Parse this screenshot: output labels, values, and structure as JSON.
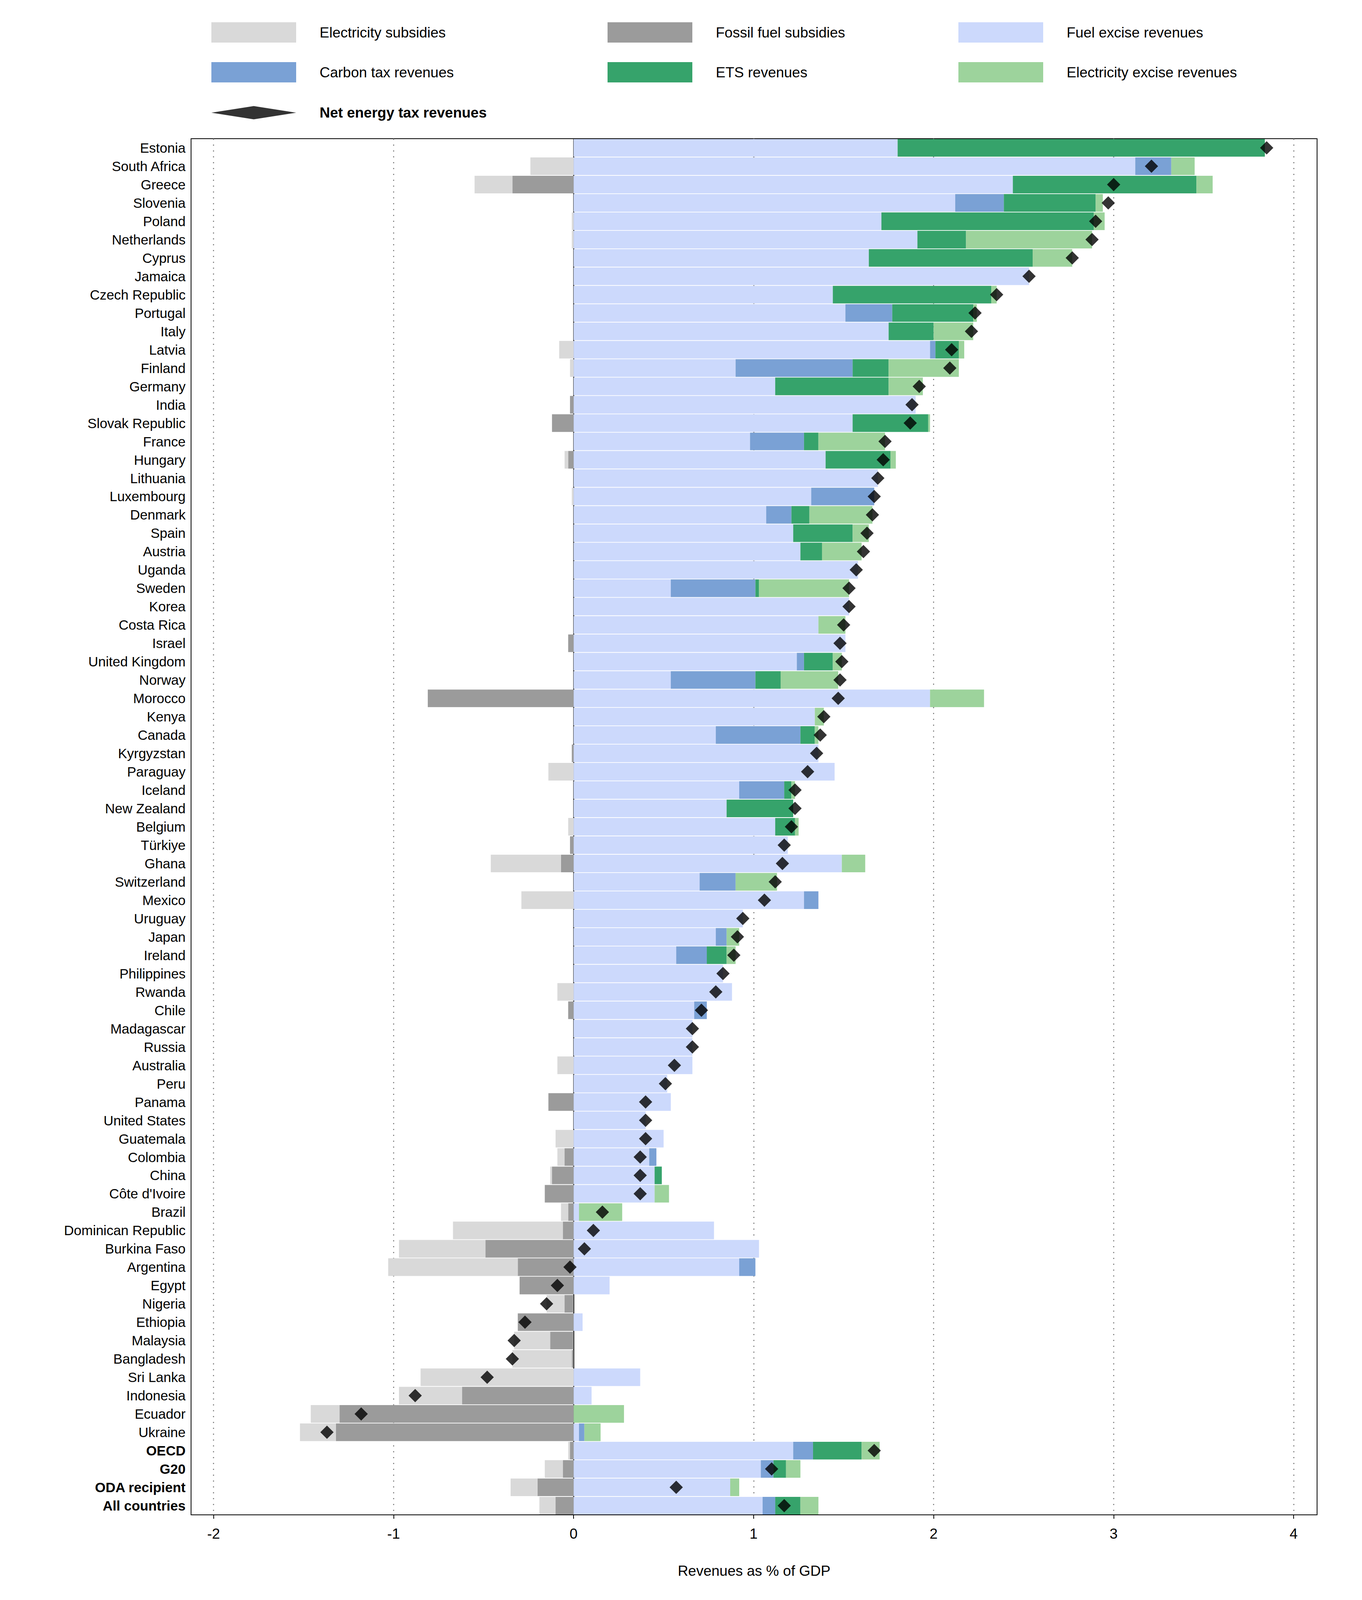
{
  "chart_data": {
    "type": "bar",
    "orientation": "horizontal",
    "stacked": true,
    "grid": true,
    "legend": "top",
    "x_label": "Revenues as % of GDP",
    "xlim": [
      -2.125,
      4.13
    ],
    "xticks": [
      -2,
      -1,
      0,
      1,
      2,
      3,
      4
    ],
    "categories": [
      "Estonia",
      "South Africa",
      "Greece",
      "Slovenia",
      "Poland",
      "Netherlands",
      "Cyprus",
      "Jamaica",
      "Czech Republic",
      "Portugal",
      "Italy",
      "Latvia",
      "Finland",
      "Germany",
      "India",
      "Slovak Republic",
      "France",
      "Hungary",
      "Lithuania",
      "Luxembourg",
      "Denmark",
      "Spain",
      "Austria",
      "Uganda",
      "Sweden",
      "Korea",
      "Costa Rica",
      "Israel",
      "United Kingdom",
      "Norway",
      "Morocco",
      "Kenya",
      "Canada",
      "Kyrgyzstan",
      "Paraguay",
      "Iceland",
      "New Zealand",
      "Belgium",
      "Türkiye",
      "Ghana",
      "Switzerland",
      "Mexico",
      "Uruguay",
      "Japan",
      "Ireland",
      "Philippines",
      "Rwanda",
      "Chile",
      "Madagascar",
      "Russia",
      "Australia",
      "Peru",
      "Panama",
      "United States",
      "Guatemala",
      "Colombia",
      "China",
      "Côte d'Ivoire",
      "Brazil",
      "Dominican Republic",
      "Burkina Faso",
      "Argentina",
      "Egypt",
      "Nigeria",
      "Ethiopia",
      "Malaysia",
      "Bangladesh",
      "Sri Lanka",
      "Indonesia",
      "Ecuador",
      "Ukraine",
      "OECD",
      "G20",
      "ODA recipient",
      "All countries"
    ],
    "series": [
      {
        "name": "Fuel excise revenues",
        "color": "#ccd9fc",
        "values": [
          1.8,
          3.12,
          2.44,
          2.12,
          1.71,
          1.91,
          1.64,
          2.53,
          1.44,
          1.51,
          1.75,
          1.98,
          0.9,
          1.12,
          1.9,
          1.55,
          0.98,
          1.4,
          1.69,
          1.32,
          1.07,
          1.22,
          1.26,
          1.58,
          0.54,
          1.53,
          1.36,
          1.51,
          1.24,
          0.54,
          1.98,
          1.34,
          0.79,
          1.36,
          1.45,
          0.92,
          0.85,
          1.12,
          1.19,
          1.49,
          0.7,
          1.28,
          0.94,
          0.79,
          0.57,
          0.83,
          0.88,
          0.67,
          0.66,
          0.66,
          0.66,
          0.52,
          0.54,
          0.4,
          0.5,
          0.42,
          0.45,
          0.45,
          0.03,
          0.78,
          1.03,
          0.92,
          0.2,
          0,
          0.05,
          0,
          0,
          0.37,
          0.1,
          0,
          0.03,
          1.22,
          1.04,
          0.87,
          1.05
        ]
      },
      {
        "name": "Carbon tax revenues",
        "color": "#7aa1d5",
        "values": [
          0,
          0.2,
          0,
          0.27,
          0,
          0,
          0,
          0,
          0,
          0.26,
          0,
          0.03,
          0.65,
          0,
          0,
          0,
          0.3,
          0,
          0,
          0.35,
          0.14,
          0,
          0,
          0,
          0.47,
          0,
          0,
          0,
          0.04,
          0.47,
          0,
          0,
          0.47,
          0,
          0,
          0.25,
          0,
          0,
          0,
          0,
          0.2,
          0.08,
          0,
          0.06,
          0.17,
          0,
          0,
          0.07,
          0,
          0,
          0,
          0,
          0,
          0,
          0,
          0.04,
          0,
          0,
          0,
          0,
          0,
          0.09,
          0,
          0,
          0,
          0,
          0,
          0,
          0,
          0,
          0.03,
          0.11,
          0.07,
          0,
          0.07
        ]
      },
      {
        "name": "ETS revenues",
        "color": "#36a36b",
        "values": [
          2.04,
          0,
          1.02,
          0.51,
          1.18,
          0.27,
          0.91,
          0,
          0.88,
          0.45,
          0.25,
          0.13,
          0.2,
          0.63,
          0,
          0.42,
          0.08,
          0.36,
          0,
          0,
          0.1,
          0.33,
          0.12,
          0,
          0.02,
          0,
          0,
          0,
          0.16,
          0.14,
          0,
          0,
          0.08,
          0,
          0,
          0.04,
          0.37,
          0.11,
          0,
          0,
          0,
          0,
          0,
          0,
          0.11,
          0,
          0,
          0,
          0,
          0,
          0,
          0,
          0,
          0,
          0,
          0,
          0.04,
          0,
          0,
          0,
          0,
          0,
          0,
          0,
          0,
          0,
          0,
          0,
          0,
          0,
          0,
          0.27,
          0.07,
          0,
          0.14
        ]
      },
      {
        "name": "Electricity excise revenues",
        "color": "#9dd39c",
        "values": [
          0,
          0.13,
          0.09,
          0.04,
          0.06,
          0.7,
          0.22,
          0,
          0.03,
          0.02,
          0.22,
          0.03,
          0.39,
          0.19,
          0,
          0.01,
          0.37,
          0.03,
          0,
          0,
          0.35,
          0.09,
          0.22,
          0,
          0.5,
          0,
          0.15,
          0,
          0.05,
          0.32,
          0.3,
          0.05,
          0.02,
          0,
          0,
          0.02,
          0,
          0.02,
          0,
          0.13,
          0.23,
          0,
          0,
          0.07,
          0.05,
          0,
          0,
          0,
          0,
          0,
          0,
          0,
          0,
          0,
          0,
          0,
          0,
          0.08,
          0.24,
          0,
          0,
          0,
          0,
          0,
          0,
          0,
          0,
          0,
          0,
          0.28,
          0.09,
          0.1,
          0.08,
          0.05,
          0.1
        ]
      },
      {
        "name": "Fossil fuel subsidies",
        "color": "#9b9b9b",
        "values": [
          0,
          0,
          -0.34,
          0,
          0,
          0,
          0,
          0,
          0,
          0,
          0,
          0,
          0,
          0,
          -0.02,
          -0.12,
          0,
          -0.03,
          0,
          0,
          0,
          0,
          0,
          0,
          0,
          0,
          0,
          -0.03,
          0,
          0,
          -0.81,
          0,
          0,
          -0.01,
          0,
          0,
          0,
          0,
          -0.02,
          -0.07,
          0,
          0,
          0,
          0,
          0,
          0,
          0,
          -0.03,
          0,
          0,
          0,
          0,
          -0.14,
          0,
          0,
          -0.05,
          -0.12,
          -0.16,
          -0.03,
          -0.06,
          -0.49,
          -0.31,
          -0.3,
          -0.05,
          -0.31,
          -0.13,
          -0.01,
          0,
          -0.62,
          -1.3,
          -1.32,
          -0.02,
          -0.06,
          -0.2,
          -0.1
        ]
      },
      {
        "name": "Electricity subsidies",
        "color": "#d9d9d9",
        "values": [
          0,
          -0.24,
          -0.21,
          0,
          -0.01,
          -0.01,
          0,
          0,
          0,
          0,
          0,
          -0.08,
          -0.02,
          0,
          0,
          0,
          0,
          -0.02,
          0,
          -0.01,
          0,
          0,
          0,
          0,
          0,
          0,
          0,
          0,
          0,
          0,
          0,
          0,
          0,
          0,
          -0.14,
          0,
          0,
          -0.03,
          0,
          -0.39,
          0,
          -0.29,
          0,
          0,
          0,
          0,
          -0.09,
          0,
          0,
          0,
          -0.09,
          0,
          0,
          0,
          -0.1,
          -0.04,
          -0.01,
          0,
          -0.04,
          -0.61,
          -0.48,
          -0.72,
          0,
          -0.1,
          0,
          -0.2,
          -0.33,
          -0.85,
          -0.35,
          -0.16,
          -0.2,
          -0.01,
          -0.1,
          -0.15,
          -0.09
        ]
      },
      {
        "name": "Net energy tax revenues",
        "type": "scatter",
        "marker": "diamond",
        "color": "#000000",
        "values": [
          3.85,
          3.21,
          3.0,
          2.97,
          2.9,
          2.88,
          2.77,
          2.53,
          2.35,
          2.23,
          2.21,
          2.1,
          2.09,
          1.92,
          1.88,
          1.87,
          1.73,
          1.72,
          1.69,
          1.67,
          1.66,
          1.63,
          1.61,
          1.57,
          1.53,
          1.53,
          1.5,
          1.48,
          1.49,
          1.48,
          1.47,
          1.39,
          1.37,
          1.35,
          1.3,
          1.23,
          1.23,
          1.21,
          1.17,
          1.16,
          1.12,
          1.06,
          0.94,
          0.91,
          0.89,
          0.83,
          0.79,
          0.71,
          0.66,
          0.66,
          0.56,
          0.51,
          0.4,
          0.4,
          0.4,
          0.37,
          0.37,
          0.37,
          0.16,
          0.11,
          0.06,
          -0.02,
          -0.09,
          -0.15,
          -0.27,
          -0.33,
          -0.34,
          -0.48,
          -0.88,
          -1.18,
          -1.37,
          1.67,
          1.1,
          0.57,
          1.17
        ]
      }
    ]
  }
}
